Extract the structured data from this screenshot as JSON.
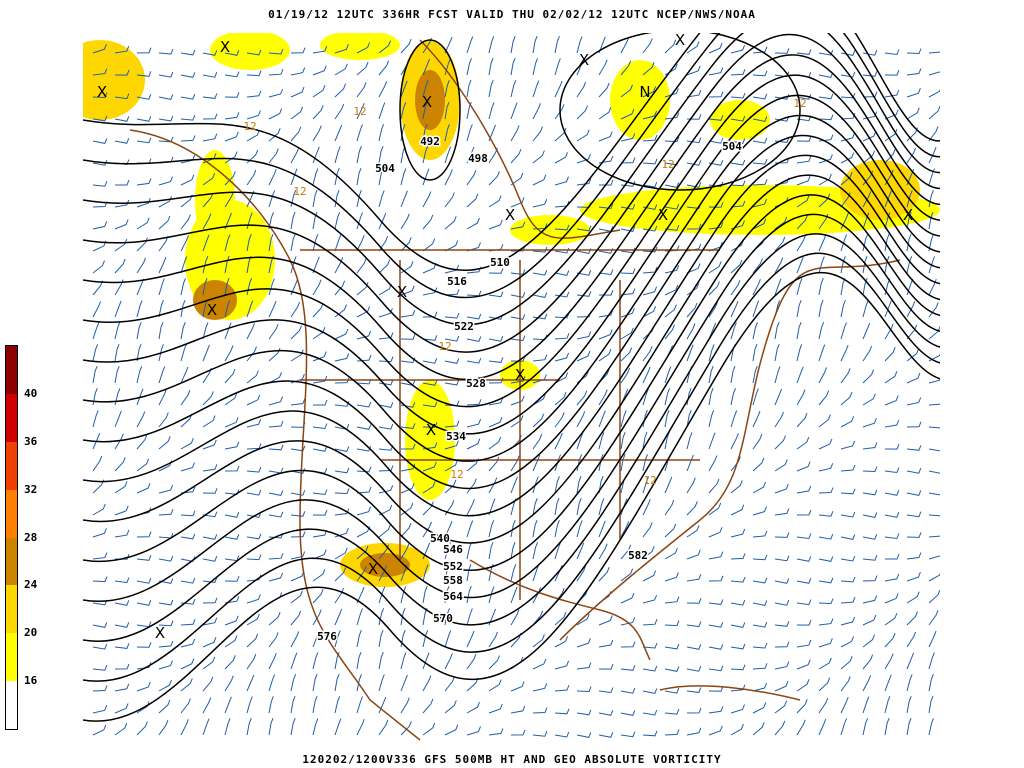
{
  "header": {
    "title": "01/19/12 12UTC   336HR  FCST VALID THU 02/02/12 12UTC  NCEP/NWS/NOAA"
  },
  "footer": {
    "title": "120202/1200V336 GFS 500MB HT AND GEO ABSOLUTE VORTICITY"
  },
  "legend": {
    "bins": [
      {
        "label": "",
        "color": "#ffffff"
      },
      {
        "label": "16",
        "color": "#ffff00"
      },
      {
        "label": "20",
        "color": "#ffd700"
      },
      {
        "label": "24",
        "color": "#cc8400"
      },
      {
        "label": "28",
        "color": "#ff8000"
      },
      {
        "label": "32",
        "color": "#f04000"
      },
      {
        "label": "36",
        "color": "#d00000"
      },
      {
        "label": "40",
        "color": "#8b0000"
      }
    ]
  },
  "map": {
    "contour_color": "#000000",
    "coast_color": "#8b4513",
    "barb_color": "#1f5fa8",
    "vorticity_contour_color": "#cc7a00",
    "height_labels": [
      "492",
      "498",
      "504",
      "504",
      "510",
      "516",
      "522",
      "528",
      "534",
      "540",
      "546",
      "552",
      "558",
      "564",
      "570",
      "576",
      "582"
    ],
    "vorticity_labels": [
      "12",
      "12",
      "12",
      "12",
      "12",
      "12",
      "12",
      "12"
    ],
    "min_marker": "X",
    "max_marker": "N"
  }
}
